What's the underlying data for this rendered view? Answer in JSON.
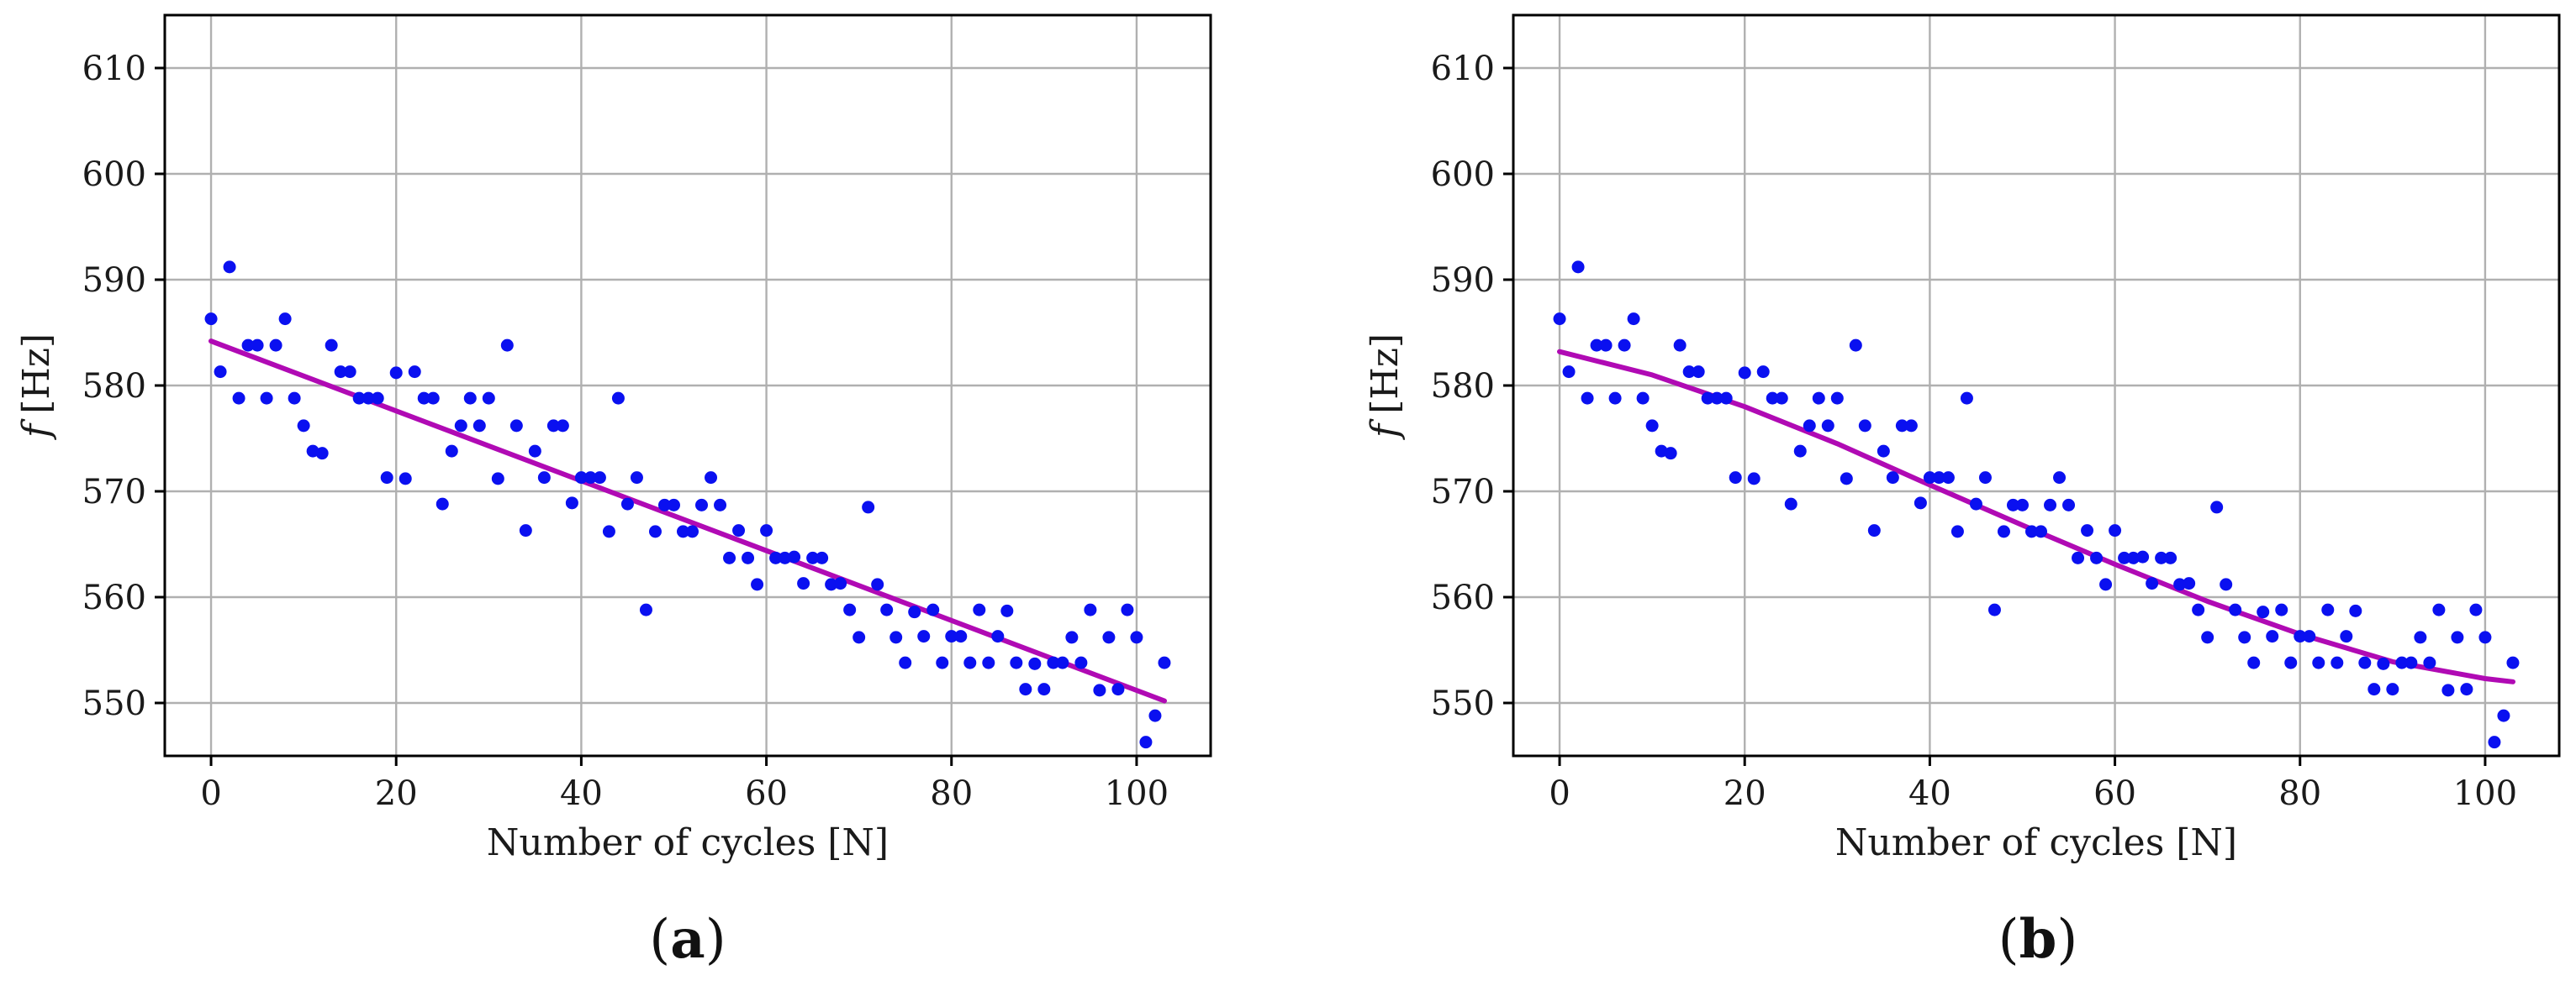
{
  "chart_data": [
    {
      "type": "scatter",
      "panel_label": "a",
      "xlabel": "Number of cycles [N]",
      "ylabel": "f [Hz]",
      "ylabel_var": "f",
      "ylabel_unit": "[Hz]",
      "xlim": [
        -5,
        108
      ],
      "ylim": [
        545,
        615
      ],
      "xticks": [
        0,
        20,
        40,
        60,
        80,
        100
      ],
      "yticks": [
        550,
        560,
        570,
        580,
        590,
        600,
        610
      ],
      "grid": true,
      "colors": {
        "points": "#0a10f0",
        "fit": "#b00ab4"
      },
      "series": [
        {
          "kind": "points",
          "x": [
            0,
            1,
            2,
            3,
            4,
            5,
            6,
            7,
            8,
            9,
            10,
            11,
            12,
            13,
            14,
            15,
            16,
            17,
            18,
            19,
            20,
            21,
            22,
            23,
            24,
            25,
            26,
            27,
            28,
            29,
            30,
            31,
            32,
            33,
            34,
            35,
            36,
            37,
            38,
            39,
            40,
            41,
            42,
            43,
            44,
            45,
            46,
            47,
            48,
            49,
            50,
            51,
            52,
            53,
            54,
            55,
            56,
            57,
            58,
            59,
            60,
            61,
            62,
            63,
            64,
            65,
            66,
            67,
            68,
            69,
            70,
            71,
            72,
            73,
            74,
            75,
            76,
            77,
            78,
            79,
            80,
            81,
            82,
            83,
            84,
            85,
            86,
            87,
            88,
            89,
            90,
            91,
            92,
            93,
            94,
            95,
            96,
            97,
            98,
            99,
            100,
            101,
            102,
            103
          ],
          "y": [
            586.3,
            581.3,
            591.2,
            578.8,
            583.8,
            583.8,
            578.8,
            583.8,
            586.3,
            578.8,
            576.2,
            573.8,
            573.6,
            583.8,
            581.3,
            581.3,
            578.8,
            578.8,
            578.8,
            571.3,
            581.2,
            571.2,
            581.3,
            578.8,
            578.8,
            568.8,
            573.8,
            576.2,
            578.8,
            576.2,
            578.8,
            571.2,
            583.8,
            576.2,
            566.3,
            573.8,
            571.3,
            576.2,
            576.2,
            568.9,
            571.3,
            571.3,
            571.3,
            566.2,
            578.8,
            568.8,
            571.3,
            558.8,
            566.2,
            568.7,
            568.7,
            566.2,
            566.2,
            568.7,
            571.3,
            568.7,
            563.7,
            566.3,
            563.7,
            561.2,
            566.3,
            563.7,
            563.7,
            563.8,
            561.3,
            563.7,
            563.7,
            561.2,
            561.3,
            558.8,
            556.2,
            568.5,
            561.2,
            558.8,
            556.2,
            553.8,
            558.6,
            556.3,
            558.8,
            553.8,
            556.3,
            556.3,
            553.8,
            558.8,
            553.8,
            556.3,
            558.7,
            553.8,
            551.3,
            553.7,
            551.3,
            553.8,
            553.8,
            556.2,
            553.8,
            558.8,
            551.2,
            556.2,
            551.3,
            558.8,
            556.2,
            546.3,
            548.8,
            553.8
          ]
        },
        {
          "kind": "fit",
          "x": [
            0,
            103
          ],
          "y": [
            584.2,
            550.2
          ]
        }
      ]
    },
    {
      "type": "scatter",
      "panel_label": "b",
      "xlabel": "Number of cycles [N]",
      "ylabel": "f [Hz]",
      "ylabel_var": "f",
      "ylabel_unit": "[Hz]",
      "xlim": [
        -5,
        108
      ],
      "ylim": [
        545,
        615
      ],
      "xticks": [
        0,
        20,
        40,
        60,
        80,
        100
      ],
      "yticks": [
        550,
        560,
        570,
        580,
        590,
        600,
        610
      ],
      "grid": true,
      "colors": {
        "points": "#0a10f0",
        "fit": "#b00ab4"
      },
      "series": [
        {
          "kind": "points",
          "x": [
            0,
            1,
            2,
            3,
            4,
            5,
            6,
            7,
            8,
            9,
            10,
            11,
            12,
            13,
            14,
            15,
            16,
            17,
            18,
            19,
            20,
            21,
            22,
            23,
            24,
            25,
            26,
            27,
            28,
            29,
            30,
            31,
            32,
            33,
            34,
            35,
            36,
            37,
            38,
            39,
            40,
            41,
            42,
            43,
            44,
            45,
            46,
            47,
            48,
            49,
            50,
            51,
            52,
            53,
            54,
            55,
            56,
            57,
            58,
            59,
            60,
            61,
            62,
            63,
            64,
            65,
            66,
            67,
            68,
            69,
            70,
            71,
            72,
            73,
            74,
            75,
            76,
            77,
            78,
            79,
            80,
            81,
            82,
            83,
            84,
            85,
            86,
            87,
            88,
            89,
            90,
            91,
            92,
            93,
            94,
            95,
            96,
            97,
            98,
            99,
            100,
            101,
            102,
            103
          ],
          "y": [
            586.3,
            581.3,
            591.2,
            578.8,
            583.8,
            583.8,
            578.8,
            583.8,
            586.3,
            578.8,
            576.2,
            573.8,
            573.6,
            583.8,
            581.3,
            581.3,
            578.8,
            578.8,
            578.8,
            571.3,
            581.2,
            571.2,
            581.3,
            578.8,
            578.8,
            568.8,
            573.8,
            576.2,
            578.8,
            576.2,
            578.8,
            571.2,
            583.8,
            576.2,
            566.3,
            573.8,
            571.3,
            576.2,
            576.2,
            568.9,
            571.3,
            571.3,
            571.3,
            566.2,
            578.8,
            568.8,
            571.3,
            558.8,
            566.2,
            568.7,
            568.7,
            566.2,
            566.2,
            568.7,
            571.3,
            568.7,
            563.7,
            566.3,
            563.7,
            561.2,
            566.3,
            563.7,
            563.7,
            563.8,
            561.3,
            563.7,
            563.7,
            561.2,
            561.3,
            558.8,
            556.2,
            568.5,
            561.2,
            558.8,
            556.2,
            553.8,
            558.6,
            556.3,
            558.8,
            553.8,
            556.3,
            556.3,
            553.8,
            558.8,
            553.8,
            556.3,
            558.7,
            553.8,
            551.3,
            553.7,
            551.3,
            553.8,
            553.8,
            556.2,
            553.8,
            558.8,
            551.2,
            556.2,
            551.3,
            558.8,
            556.2,
            546.3,
            548.8,
            553.8
          ]
        },
        {
          "kind": "fit",
          "x": [
            0,
            10,
            20,
            30,
            40,
            50,
            60,
            70,
            80,
            90,
            100,
            103
          ],
          "y": [
            583.2,
            581.0,
            578.0,
            574.5,
            570.6,
            566.8,
            563.1,
            559.6,
            556.5,
            553.9,
            552.3,
            552.0
          ]
        }
      ]
    }
  ]
}
